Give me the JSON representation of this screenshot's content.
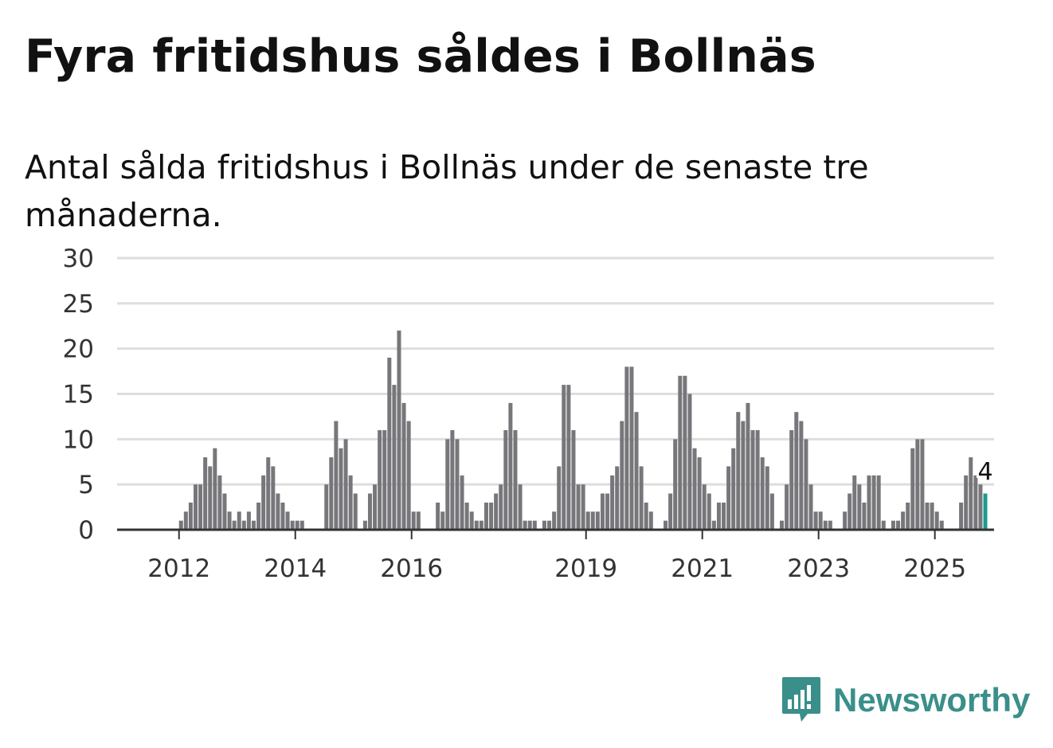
{
  "title": "Fyra fritidshus såldes i Bollnäs",
  "subtitle": "Antal sålda fritidshus i Bollnäs under de senaste tre månaderna.",
  "brand": {
    "name": "Newsworthy",
    "color": "#3a8f8a",
    "icon": "newsworthy-logo-icon"
  },
  "colors": {
    "bar": "#77767a",
    "highlight": "#1a9a93",
    "grid": "#dedede",
    "axis": "#333333"
  },
  "chart_data": {
    "type": "bar",
    "title": "",
    "xlabel": "",
    "ylabel": "",
    "ylim": [
      0,
      30
    ],
    "y_ticks": [
      0,
      5,
      10,
      15,
      20,
      25,
      30
    ],
    "x_tick_labels": [
      {
        "label": "2012",
        "index": 9
      },
      {
        "label": "2014",
        "index": 33
      },
      {
        "label": "2016",
        "index": 57
      },
      {
        "label": "2019",
        "index": 93
      },
      {
        "label": "2021",
        "index": 117
      },
      {
        "label": "2023",
        "index": 141
      },
      {
        "label": "2025",
        "index": 165
      }
    ],
    "grid": true,
    "values": [
      0,
      0,
      0,
      0,
      0,
      0,
      0,
      0,
      0,
      1,
      2,
      3,
      5,
      5,
      8,
      7,
      9,
      6,
      4,
      2,
      1,
      2,
      1,
      2,
      1,
      3,
      6,
      8,
      7,
      4,
      3,
      2,
      1,
      1,
      1,
      0,
      0,
      0,
      0,
      5,
      8,
      12,
      9,
      10,
      6,
      4,
      0,
      1,
      4,
      5,
      11,
      11,
      19,
      16,
      22,
      14,
      12,
      2,
      2,
      0,
      0,
      0,
      3,
      2,
      10,
      11,
      10,
      6,
      3,
      2,
      1,
      1,
      3,
      3,
      4,
      5,
      11,
      14,
      11,
      5,
      1,
      1,
      1,
      0,
      1,
      1,
      2,
      7,
      16,
      16,
      11,
      5,
      5,
      2,
      2,
      2,
      4,
      4,
      6,
      7,
      12,
      18,
      18,
      13,
      7,
      3,
      2,
      0,
      0,
      1,
      4,
      10,
      17,
      17,
      15,
      9,
      8,
      5,
      4,
      1,
      3,
      3,
      7,
      9,
      13,
      12,
      14,
      11,
      11,
      8,
      7,
      4,
      0,
      1,
      5,
      11,
      13,
      12,
      10,
      5,
      2,
      2,
      1,
      1,
      0,
      0,
      2,
      4,
      6,
      5,
      3,
      6,
      6,
      6,
      1,
      0,
      1,
      1,
      2,
      3,
      9,
      10,
      10,
      3,
      3,
      2,
      1,
      0,
      0,
      0,
      3,
      6,
      8,
      6,
      5,
      4
    ],
    "highlight_index": 175,
    "data_labels": [
      {
        "index": 175,
        "text": "4"
      }
    ]
  }
}
